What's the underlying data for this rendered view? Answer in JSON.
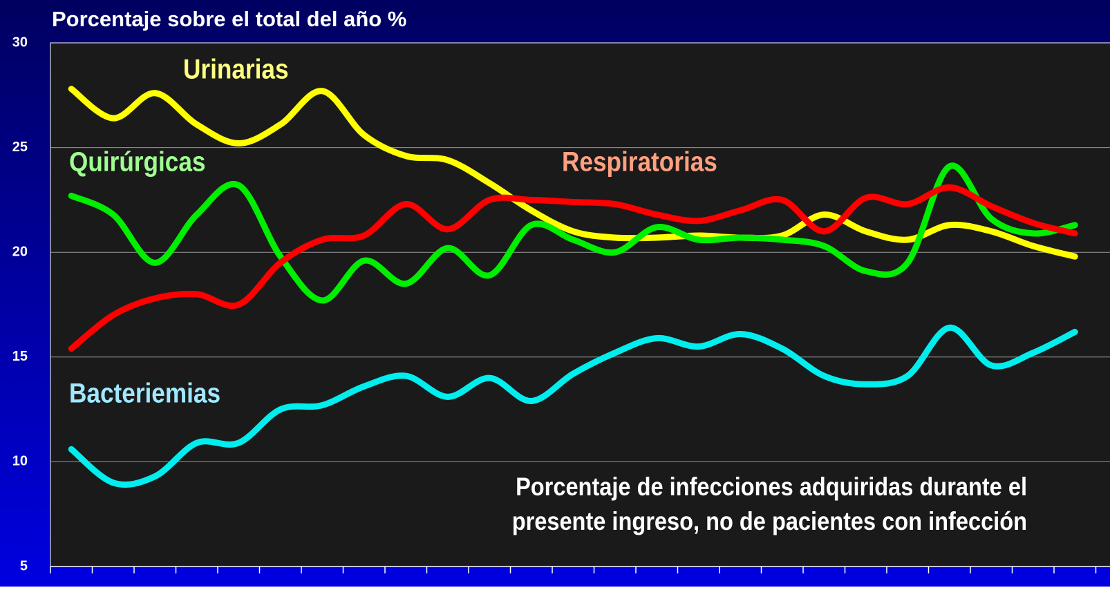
{
  "chart_data": {
    "type": "line",
    "title": "Porcentaje sobre el total del año %",
    "categories": [
      null,
      null,
      null,
      null,
      null,
      null,
      null,
      null,
      null,
      null,
      null,
      null,
      null,
      null,
      null,
      null,
      null,
      null,
      null,
      null,
      null,
      null,
      null,
      null,
      null
    ],
    "series": [
      {
        "name": "Urinarias",
        "color": "#ffff00",
        "label_color": "#ffff80",
        "values": [
          27.8,
          26.4,
          27.6,
          26.1,
          25.2,
          26.1,
          27.7,
          25.6,
          24.6,
          24.4,
          23.3,
          22.0,
          21.0,
          20.7,
          20.7,
          20.8,
          20.7,
          20.8,
          21.8,
          21.0,
          20.6,
          21.3,
          21.0,
          20.3,
          19.8
        ]
      },
      {
        "name": "Quirúrgicas",
        "color": "#00ee00",
        "label_color": "#a0ff90",
        "values": [
          22.7,
          21.8,
          19.5,
          21.8,
          23.2,
          19.8,
          17.7,
          19.6,
          18.5,
          20.2,
          18.9,
          21.3,
          20.6,
          20.0,
          21.2,
          20.6,
          20.7,
          20.6,
          20.3,
          19.1,
          19.5,
          24.1,
          21.6,
          20.9,
          21.3
        ]
      },
      {
        "name": "Respiratorias",
        "color": "#ff0000",
        "label_color": "#ffa080",
        "values": [
          15.4,
          17.0,
          17.8,
          18.0,
          17.5,
          19.5,
          20.6,
          20.8,
          22.3,
          21.1,
          22.5,
          22.5,
          22.4,
          22.3,
          21.8,
          21.5,
          22.0,
          22.5,
          21.0,
          22.6,
          22.3,
          23.1,
          22.2,
          21.4,
          20.9
        ]
      },
      {
        "name": "Bacteriemias",
        "color": "#00eeee",
        "label_color": "#a0e8ff",
        "values": [
          10.6,
          9.0,
          9.3,
          10.9,
          10.9,
          12.5,
          12.7,
          13.6,
          14.1,
          13.1,
          14.0,
          12.9,
          14.2,
          15.2,
          15.9,
          15.5,
          16.1,
          15.4,
          14.1,
          13.7,
          14.1,
          16.4,
          14.6,
          15.2,
          16.2
        ]
      }
    ],
    "annotation": [
      "Porcentaje de infecciones adquiridas durante el",
      "presente ingreso, no de pacientes con infección"
    ],
    "ylim": [
      5,
      30
    ],
    "yticks": [
      5,
      10,
      15,
      20,
      25,
      30
    ],
    "grid": true
  }
}
